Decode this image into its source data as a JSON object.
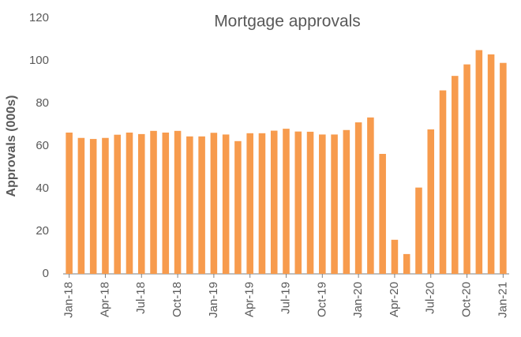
{
  "chart_data": {
    "type": "bar",
    "title": "Mortgage approvals",
    "y_label": "Approvals (000s)",
    "categories": [
      "Jan-18",
      null,
      null,
      "Apr-18",
      null,
      null,
      "Jul-18",
      null,
      null,
      "Oct-18",
      null,
      null,
      "Jan-19",
      null,
      null,
      "Apr-19",
      null,
      null,
      "Jul-19",
      null,
      null,
      "Oct-19",
      null,
      null,
      "Jan-20",
      null,
      null,
      "Apr-20",
      null,
      null,
      "Jul-20",
      null,
      null,
      "Oct-20",
      null,
      null,
      "Jan-21"
    ],
    "values": [
      66.3,
      63.8,
      63.3,
      63.8,
      65.3,
      66.3,
      65.6,
      67.1,
      66.3,
      67.1,
      64.5,
      64.5,
      66.2,
      65.4,
      62.3,
      66.0,
      66.0,
      67.2,
      68.1,
      66.8,
      66.7,
      65.4,
      65.4,
      67.5,
      71.1,
      73.4,
      56.3,
      16.0,
      9.3,
      40.5,
      67.8,
      86.1,
      92.9,
      98.3,
      105.0,
      103.0,
      99.0
    ],
    "color": "#f79b4d",
    "ylim": [
      0,
      120
    ],
    "yticks": [
      0,
      20,
      40,
      60,
      80,
      100,
      120
    ],
    "grid": false
  }
}
